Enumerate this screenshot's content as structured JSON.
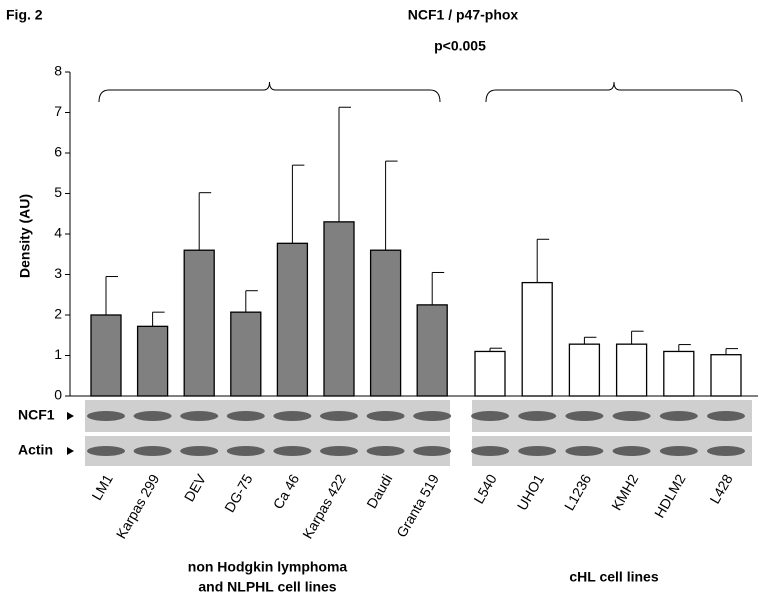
{
  "figure_label": "Fig. 2",
  "chart_data": {
    "type": "bar",
    "title": "NCF1 / p47-phox",
    "subtitle": "p<0.005",
    "y_label": "Density  (AU)",
    "ylim": [
      0,
      8
    ],
    "yticks": [
      0,
      1,
      2,
      3,
      4,
      5,
      6,
      7,
      8
    ],
    "blot_labels": [
      "NCF1",
      "Actin"
    ],
    "groups": [
      {
        "label_lines": [
          "non Hodgkin lymphoma",
          "and NLPHL cell lines"
        ],
        "color": "#808080",
        "categories": [
          "LM1",
          "Karpas 299",
          "DEV",
          "DG-75",
          "Ca 46",
          "Karpas 422",
          "Daudi",
          "Granta 519"
        ],
        "values": [
          2.0,
          1.72,
          3.6,
          2.07,
          3.77,
          4.3,
          3.6,
          2.25
        ],
        "errors": [
          0.95,
          0.35,
          1.42,
          0.53,
          1.93,
          2.83,
          2.2,
          0.8
        ]
      },
      {
        "label_lines": [
          "cHL cell lines"
        ],
        "color": "#ffffff",
        "categories": [
          "L540",
          "UHO1",
          "L1236",
          "KMH2",
          "HDLM2",
          "L428"
        ],
        "values": [
          1.1,
          2.8,
          1.28,
          1.28,
          1.1,
          1.02
        ],
        "errors": [
          0.08,
          1.07,
          0.17,
          0.32,
          0.17,
          0.15
        ]
      }
    ]
  }
}
